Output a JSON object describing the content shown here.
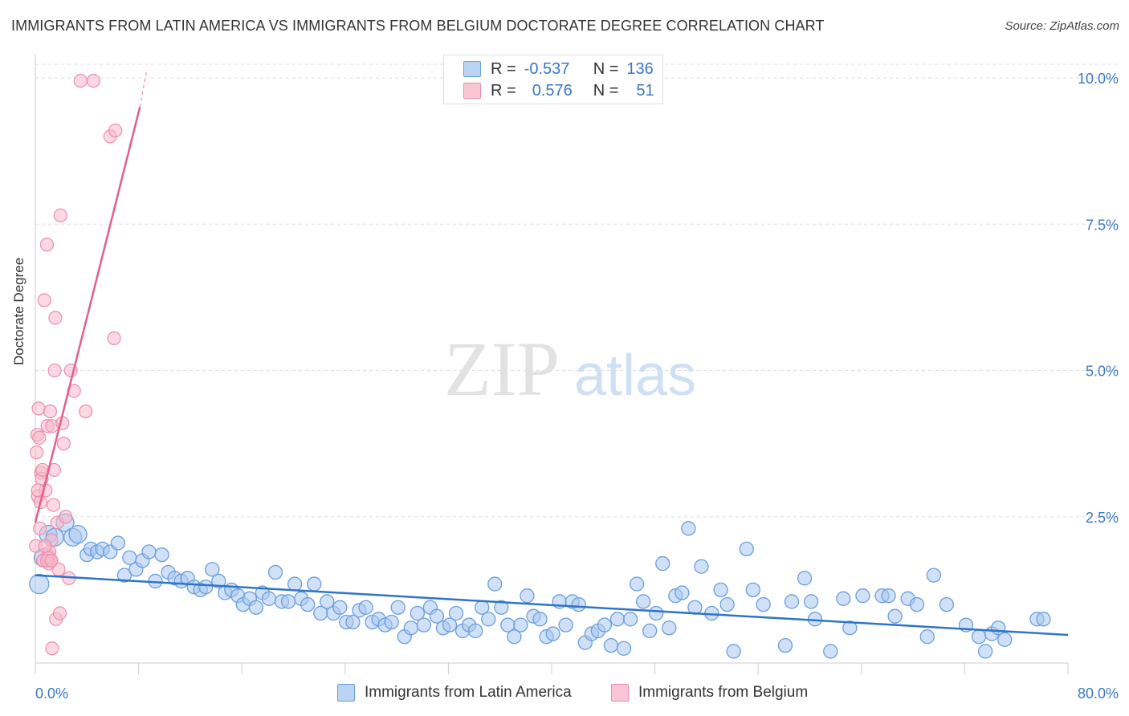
{
  "title": "IMMIGRANTS FROM LATIN AMERICA VS IMMIGRANTS FROM BELGIUM DOCTORATE DEGREE CORRELATION CHART",
  "source": "Source: ZipAtlas.com",
  "watermark": {
    "zip": "ZIP",
    "atlas": "atlas"
  },
  "legend_top": {
    "rows": [
      {
        "r_label": "R =",
        "r_value": "-0.537",
        "n_label": "N =",
        "n_value": "136"
      },
      {
        "r_label": "R =",
        "r_value": "0.576",
        "n_label": "N =",
        "n_value": "51"
      }
    ]
  },
  "chart_data": {
    "type": "scatter",
    "title": "IMMIGRANTS FROM LATIN AMERICA VS IMMIGRANTS FROM BELGIUM DOCTORATE DEGREE CORRELATION CHART",
    "xlabel": "",
    "ylabel": "Doctorate Degree",
    "xlim": [
      0,
      80
    ],
    "ylim": [
      0,
      10.5
    ],
    "x_tick_labels": [
      "0.0%",
      "80.0%"
    ],
    "y_ticks": [
      2.5,
      5.0,
      7.5,
      10.0
    ],
    "y_tick_labels": [
      "2.5%",
      "5.0%",
      "7.5%",
      "10.0%"
    ],
    "grid": true,
    "legend_position": "bottom",
    "colors": {
      "blue_fill": "#a9c8f0",
      "blue_stroke": "#6a9edb",
      "blue_line": "#2f74c9",
      "pink_fill": "#f7b8cb",
      "pink_stroke": "#ec8eab",
      "pink_line": "#e0608c",
      "grid": "#dddddd",
      "axis_text": "#3a78c9"
    },
    "series": [
      {
        "name": "Immigrants from Latin America",
        "r": -0.537,
        "n": 136,
        "trend": {
          "x0": 0,
          "y0": 1.5,
          "x1": 80,
          "y1": 0.48
        },
        "points": [
          [
            0.3,
            1.35
          ],
          [
            0.6,
            1.8
          ],
          [
            1.0,
            2.2
          ],
          [
            1.5,
            2.15
          ],
          [
            2.3,
            2.4
          ],
          [
            2.9,
            2.15
          ],
          [
            3.3,
            2.2
          ],
          [
            4.0,
            1.85
          ],
          [
            4.3,
            1.95
          ],
          [
            4.8,
            1.9
          ],
          [
            5.2,
            1.95
          ],
          [
            5.8,
            1.9
          ],
          [
            6.4,
            2.05
          ],
          [
            6.9,
            1.5
          ],
          [
            7.3,
            1.8
          ],
          [
            7.8,
            1.6
          ],
          [
            8.3,
            1.75
          ],
          [
            8.8,
            1.9
          ],
          [
            9.3,
            1.4
          ],
          [
            9.8,
            1.85
          ],
          [
            10.3,
            1.55
          ],
          [
            10.8,
            1.45
          ],
          [
            11.3,
            1.4
          ],
          [
            11.8,
            1.45
          ],
          [
            12.3,
            1.3
          ],
          [
            12.8,
            1.25
          ],
          [
            13.2,
            1.3
          ],
          [
            13.7,
            1.6
          ],
          [
            14.2,
            1.4
          ],
          [
            14.7,
            1.2
          ],
          [
            15.2,
            1.25
          ],
          [
            15.7,
            1.15
          ],
          [
            16.1,
            1.0
          ],
          [
            16.6,
            1.1
          ],
          [
            17.1,
            0.95
          ],
          [
            17.6,
            1.2
          ],
          [
            18.1,
            1.1
          ],
          [
            18.6,
            1.55
          ],
          [
            19.1,
            1.05
          ],
          [
            19.6,
            1.05
          ],
          [
            20.1,
            1.35
          ],
          [
            20.6,
            1.1
          ],
          [
            21.1,
            1.0
          ],
          [
            21.6,
            1.35
          ],
          [
            22.1,
            0.85
          ],
          [
            22.6,
            1.05
          ],
          [
            23.1,
            0.85
          ],
          [
            23.6,
            0.95
          ],
          [
            24.1,
            0.7
          ],
          [
            24.6,
            0.7
          ],
          [
            25.1,
            0.9
          ],
          [
            25.6,
            0.95
          ],
          [
            26.1,
            0.7
          ],
          [
            26.6,
            0.75
          ],
          [
            27.1,
            0.65
          ],
          [
            27.6,
            0.7
          ],
          [
            28.1,
            0.95
          ],
          [
            28.6,
            0.45
          ],
          [
            29.1,
            0.6
          ],
          [
            29.6,
            0.85
          ],
          [
            30.1,
            0.65
          ],
          [
            30.6,
            0.95
          ],
          [
            31.1,
            0.8
          ],
          [
            31.6,
            0.6
          ],
          [
            32.1,
            0.65
          ],
          [
            32.6,
            0.85
          ],
          [
            33.1,
            0.55
          ],
          [
            33.6,
            0.65
          ],
          [
            34.1,
            0.55
          ],
          [
            34.6,
            0.95
          ],
          [
            35.1,
            0.75
          ],
          [
            35.6,
            1.35
          ],
          [
            36.1,
            0.95
          ],
          [
            36.6,
            0.65
          ],
          [
            37.1,
            0.45
          ],
          [
            37.6,
            0.65
          ],
          [
            38.1,
            1.15
          ],
          [
            38.6,
            0.8
          ],
          [
            39.1,
            0.75
          ],
          [
            39.6,
            0.45
          ],
          [
            40.1,
            0.5
          ],
          [
            40.6,
            1.05
          ],
          [
            41.1,
            0.65
          ],
          [
            41.6,
            1.05
          ],
          [
            42.1,
            1.0
          ],
          [
            42.6,
            0.35
          ],
          [
            43.1,
            0.5
          ],
          [
            43.6,
            0.55
          ],
          [
            44.1,
            0.65
          ],
          [
            44.6,
            0.3
          ],
          [
            45.1,
            0.75
          ],
          [
            45.6,
            0.25
          ],
          [
            46.1,
            0.75
          ],
          [
            46.6,
            1.35
          ],
          [
            47.1,
            1.05
          ],
          [
            47.6,
            0.55
          ],
          [
            48.1,
            0.85
          ],
          [
            48.6,
            1.7
          ],
          [
            49.1,
            0.6
          ],
          [
            49.6,
            1.15
          ],
          [
            50.1,
            1.2
          ],
          [
            50.6,
            2.3
          ],
          [
            51.1,
            0.95
          ],
          [
            51.6,
            1.65
          ],
          [
            52.4,
            0.85
          ],
          [
            53.1,
            1.25
          ],
          [
            53.6,
            1.0
          ],
          [
            54.1,
            0.2
          ],
          [
            55.1,
            1.95
          ],
          [
            55.6,
            1.25
          ],
          [
            56.4,
            1.0
          ],
          [
            58.1,
            0.3
          ],
          [
            58.6,
            1.05
          ],
          [
            59.6,
            1.45
          ],
          [
            60.1,
            1.05
          ],
          [
            60.4,
            0.75
          ],
          [
            61.6,
            0.2
          ],
          [
            62.6,
            1.1
          ],
          [
            63.1,
            0.6
          ],
          [
            64.1,
            1.15
          ],
          [
            65.6,
            1.15
          ],
          [
            66.1,
            1.15
          ],
          [
            66.6,
            0.8
          ],
          [
            67.6,
            1.1
          ],
          [
            68.3,
            1.0
          ],
          [
            69.1,
            0.45
          ],
          [
            69.6,
            1.5
          ],
          [
            70.6,
            1.0
          ],
          [
            72.1,
            0.65
          ],
          [
            73.1,
            0.45
          ],
          [
            73.6,
            0.2
          ],
          [
            74.1,
            0.5
          ],
          [
            74.6,
            0.6
          ],
          [
            75.1,
            0.4
          ],
          [
            77.6,
            0.75
          ],
          [
            78.1,
            0.75
          ]
        ]
      },
      {
        "name": "Immigrants from Belgium",
        "r": 0.576,
        "n": 51,
        "trend": {
          "x0": 0,
          "y0": 2.4,
          "x1": 8.1,
          "y1": 9.5,
          "dash_x1": 8.6,
          "dash_y1": 10.1
        },
        "points": [
          [
            0.05,
            2.0
          ],
          [
            0.1,
            3.6
          ],
          [
            0.15,
            3.9
          ],
          [
            0.2,
            2.85
          ],
          [
            0.25,
            4.35
          ],
          [
            0.3,
            3.85
          ],
          [
            0.35,
            2.3
          ],
          [
            0.4,
            2.75
          ],
          [
            0.45,
            3.25
          ],
          [
            0.5,
            3.15
          ],
          [
            0.55,
            3.3
          ],
          [
            0.6,
            1.75
          ],
          [
            0.7,
            6.2
          ],
          [
            0.8,
            2.95
          ],
          [
            0.9,
            7.15
          ],
          [
            0.95,
            4.05
          ],
          [
            1.0,
            1.85
          ],
          [
            1.05,
            1.7
          ],
          [
            1.1,
            1.9
          ],
          [
            1.15,
            4.3
          ],
          [
            1.2,
            1.75
          ],
          [
            1.25,
            2.1
          ],
          [
            1.3,
            4.05
          ],
          [
            1.4,
            2.7
          ],
          [
            1.45,
            3.3
          ],
          [
            1.5,
            5.0
          ],
          [
            1.55,
            5.9
          ],
          [
            1.6,
            0.75
          ],
          [
            1.7,
            2.4
          ],
          [
            1.8,
            1.6
          ],
          [
            1.9,
            0.85
          ],
          [
            1.95,
            7.65
          ],
          [
            2.1,
            4.1
          ],
          [
            2.2,
            3.75
          ],
          [
            2.35,
            2.5
          ],
          [
            2.6,
            1.45
          ],
          [
            2.75,
            5.0
          ],
          [
            3.0,
            4.65
          ],
          [
            3.5,
            9.95
          ],
          [
            3.9,
            4.3
          ],
          [
            4.5,
            9.95
          ],
          [
            5.8,
            9.0
          ],
          [
            6.1,
            5.55
          ],
          [
            6.2,
            9.1
          ],
          [
            0.2,
            2.95
          ],
          [
            0.6,
            1.75
          ],
          [
            1.3,
            0.25
          ],
          [
            1.0,
            1.8
          ],
          [
            0.9,
            1.75
          ],
          [
            0.75,
            2.0
          ],
          [
            1.25,
            1.75
          ]
        ]
      }
    ]
  },
  "bottom_legend": {
    "items": [
      "Immigrants from Latin America",
      "Immigrants from Belgium"
    ]
  }
}
